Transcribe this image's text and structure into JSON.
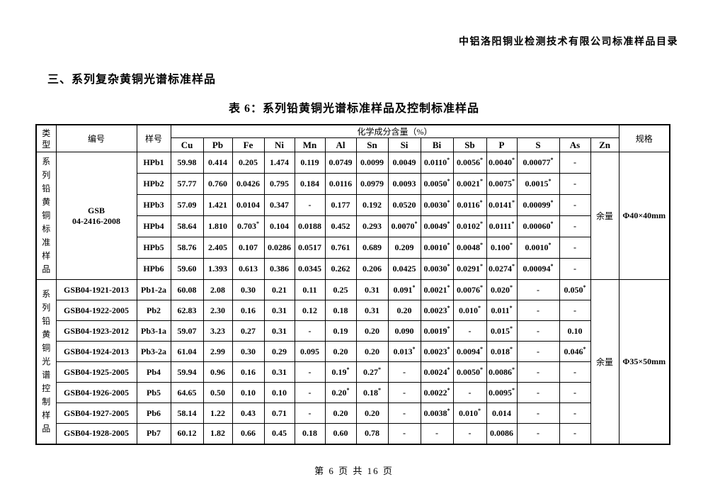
{
  "page": {
    "header_text": "中铝洛阳铜业检测技术有限公司标准样品目录",
    "section_heading": "三、系列复杂黄铜光谱标准样品",
    "table_title": "表 6：系列铅黄铜光谱标准样品及控制标准样品",
    "footer_text": "第 6 页 共 16 页"
  },
  "table": {
    "header": {
      "type_label": "类型",
      "code_label": "编号",
      "sample_label": "样号",
      "composition_label": "化学成分含量（%）",
      "spec_label": "规格",
      "elements": [
        "Cu",
        "Pb",
        "Fe",
        "Ni",
        "Mn",
        "Al",
        "Sn",
        "Si",
        "Bi",
        "Sb",
        "P",
        "S",
        "As",
        "Zn"
      ]
    },
    "sections": [
      {
        "type_vertical": "系列铅黄铜标准样品",
        "code": "GSB\n04-2416-2008",
        "zn_value": "余量",
        "spec": "Φ40×40mm",
        "rows": [
          {
            "sample": "HPb1",
            "values": [
              "59.98",
              "0.414",
              "0.205",
              "1.474",
              "0.119",
              "0.0749",
              "0.0099",
              "0.0049",
              "0.0110*",
              "0.0056*",
              "0.0040*",
              "0.00077*",
              "-"
            ]
          },
          {
            "sample": "HPb2",
            "values": [
              "57.77",
              "0.760",
              "0.0426",
              "0.795",
              "0.184",
              "0.0116",
              "0.0979",
              "0.0093",
              "0.0050*",
              "0.0021*",
              "0.0075*",
              "0.0015*",
              "-"
            ]
          },
          {
            "sample": "HPb3",
            "values": [
              "57.09",
              "1.421",
              "0.0104",
              "0.347",
              "-",
              "0.177",
              "0.192",
              "0.0520",
              "0.0030*",
              "0.0116*",
              "0.0141*",
              "0.00099*",
              "-"
            ]
          },
          {
            "sample": "HPb4",
            "values": [
              "58.64",
              "1.810",
              "0.703*",
              "0.104",
              "0.0188",
              "0.452",
              "0.293",
              "0.0070*",
              "0.0049*",
              "0.0102*",
              "0.0111*",
              "0.00060*",
              "-"
            ]
          },
          {
            "sample": "HPb5",
            "values": [
              "58.76",
              "2.405",
              "0.107",
              "0.0286",
              "0.0517",
              "0.761",
              "0.689",
              "0.209",
              "0.0010*",
              "0.0048*",
              "0.100*",
              "0.0010*",
              "-"
            ]
          },
          {
            "sample": "HPb6",
            "values": [
              "59.60",
              "1.393",
              "0.613",
              "0.386",
              "0.0345",
              "0.262",
              "0.206",
              "0.0425",
              "0.0030*",
              "0.0291*",
              "0.0274*",
              "0.00094*",
              "-"
            ]
          }
        ]
      },
      {
        "type_vertical": "系列铅黄铜光谱控制样品",
        "zn_value": "余量",
        "spec": "Φ35×50mm",
        "rows": [
          {
            "code": "GSB04-1921-2013",
            "sample": "Pb1-2a",
            "values": [
              "60.08",
              "2.08",
              "0.30",
              "0.21",
              "0.11",
              "0.25",
              "0.31",
              "0.091*",
              "0.0021*",
              "0.0076*",
              "0.020*",
              "-",
              "0.050*"
            ]
          },
          {
            "code": "GSB04-1922-2005",
            "sample": "Pb2",
            "values": [
              "62.83",
              "2.30",
              "0.16",
              "0.31",
              "0.12",
              "0.18",
              "0.31",
              "0.20",
              "0.0023*",
              "0.010*",
              "0.011*",
              "-",
              "-"
            ]
          },
          {
            "code": "GSB04-1923-2012",
            "sample": "Pb3-1a",
            "values": [
              "59.07",
              "3.23",
              "0.27",
              "0.31",
              "-",
              "0.19",
              "0.20",
              "0.090",
              "0.0019*",
              "-",
              "0.015*",
              "-",
              "0.10"
            ]
          },
          {
            "code": "GSB04-1924-2013",
            "sample": "Pb3-2a",
            "values": [
              "61.04",
              "2.99",
              "0.30",
              "0.29",
              "0.095",
              "0.20",
              "0.20",
              "0.013*",
              "0.0023*",
              "0.0094*",
              "0.018*",
              "-",
              "0.046*"
            ]
          },
          {
            "code": "GSB04-1925-2005",
            "sample": "Pb4",
            "values": [
              "59.94",
              "0.96",
              "0.16",
              "0.31",
              "-",
              "0.19*",
              "0.27*",
              "-",
              "0.0024*",
              "0.0050*",
              "0.0086*",
              "-",
              "-"
            ]
          },
          {
            "code": "GSB04-1926-2005",
            "sample": "Pb5",
            "values": [
              "64.65",
              "0.50",
              "0.10",
              "0.10",
              "-",
              "0.20*",
              "0.18*",
              "-",
              "0.0022*",
              "-",
              "0.0095*",
              "-",
              "-"
            ]
          },
          {
            "code": "GSB04-1927-2005",
            "sample": "Pb6",
            "values": [
              "58.14",
              "1.22",
              "0.43",
              "0.71",
              "-",
              "0.20",
              "0.20",
              "-",
              "0.0038*",
              "0.010*",
              "0.014",
              "-",
              "-"
            ]
          },
          {
            "code": "GSB04-1928-2005",
            "sample": "Pb7",
            "values": [
              "60.12",
              "1.82",
              "0.66",
              "0.45",
              "0.18",
              "0.60",
              "0.78",
              "-",
              "-",
              "-",
              "0.0086",
              "-",
              "-"
            ]
          }
        ]
      }
    ]
  }
}
